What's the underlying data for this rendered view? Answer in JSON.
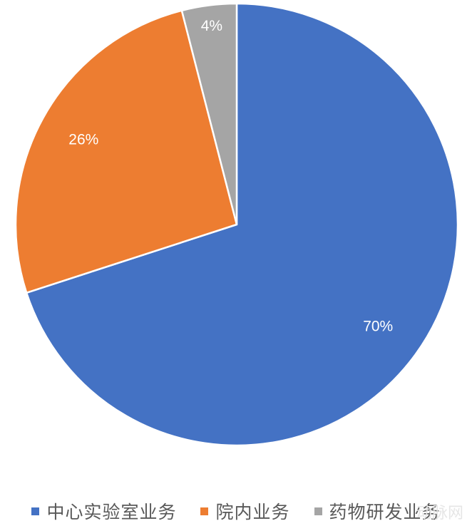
{
  "chart_data": {
    "type": "pie",
    "categories": [
      "中心实验室业务",
      "院内业务",
      "药物研发业务"
    ],
    "values": [
      70,
      26,
      4
    ],
    "labels": [
      "70%",
      "26%",
      "4%"
    ],
    "colors": [
      "#4472C4",
      "#ED7D31",
      "#A5A5A5"
    ],
    "legend": "bottom",
    "start_angle": "12 o'clock, clockwise"
  },
  "watermark": "动脉网"
}
